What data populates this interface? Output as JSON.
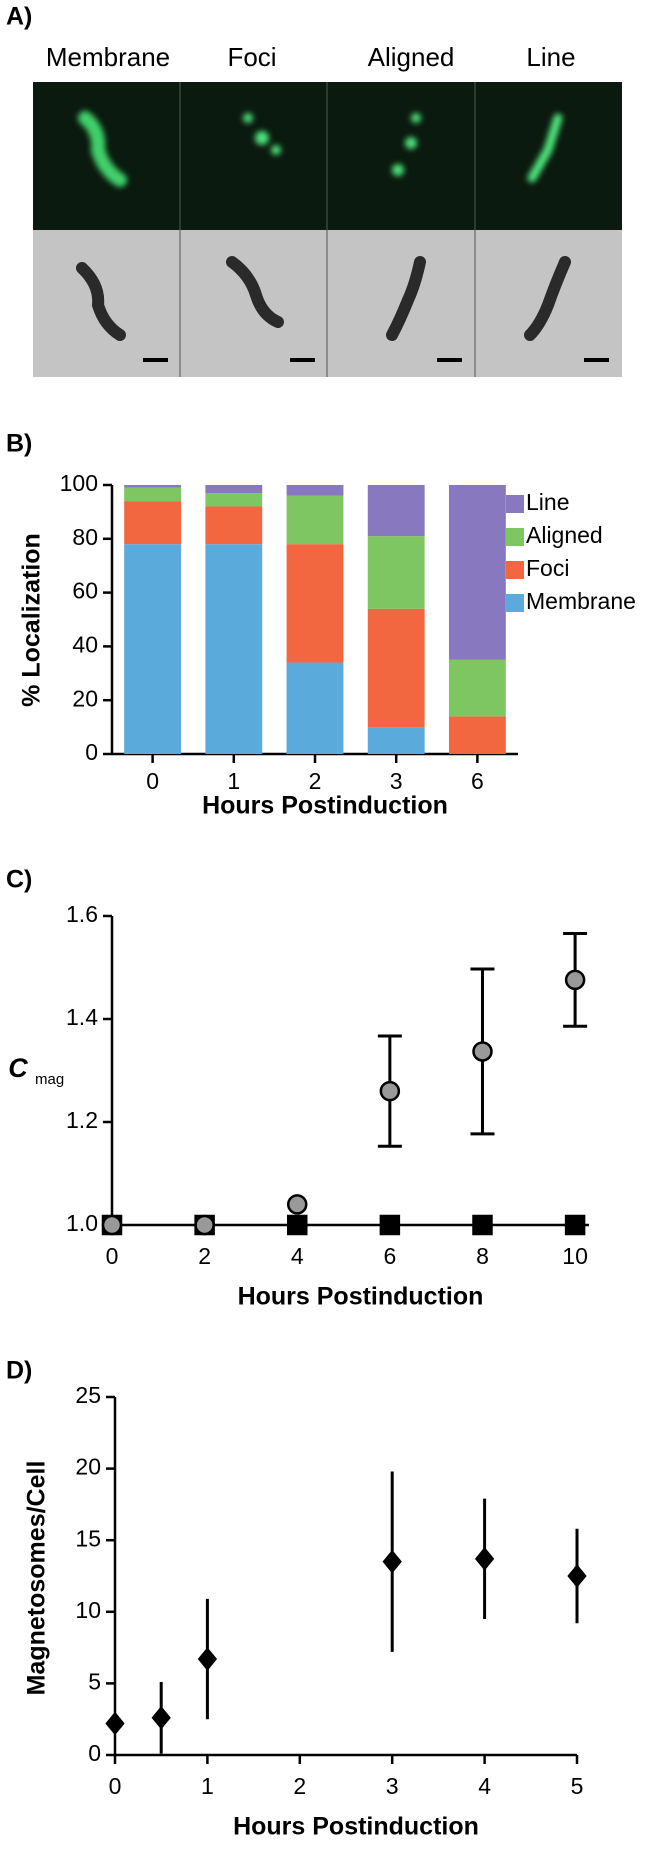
{
  "panel_a": {
    "label": "A)",
    "columns": [
      "Membrane",
      "Foci",
      "Aligned",
      "Line"
    ]
  },
  "chart_data": [
    {
      "type": "bar",
      "stacked": true,
      "panel_label": "B)",
      "ylabel": "% Localization",
      "xlabel": "Hours Postinduction",
      "categories": [
        "0",
        "1",
        "2",
        "3",
        "6"
      ],
      "series": [
        {
          "name": "Membrane",
          "color": "#5aaadc",
          "values": [
            78,
            78,
            34,
            10,
            0
          ]
        },
        {
          "name": "Foci",
          "color": "#f26640",
          "values": [
            16,
            14,
            44,
            44,
            14
          ]
        },
        {
          "name": "Aligned",
          "color": "#7dc661",
          "values": [
            5,
            5,
            18,
            27,
            21
          ]
        },
        {
          "name": "Line",
          "color": "#8878c0",
          "values": [
            1,
            3,
            4,
            19,
            65
          ]
        }
      ],
      "ylim": [
        0,
        100
      ],
      "yticks": [
        0,
        20,
        40,
        60,
        80,
        100
      ],
      "legend": "right"
    },
    {
      "type": "scatter",
      "panel_label": "C)",
      "ylabel": "C",
      "ylabel_sub": "mag",
      "xlabel": "Hours Postinduction",
      "xlim": [
        0,
        10.3
      ],
      "xticks": [
        0,
        2,
        4,
        6,
        8,
        10
      ],
      "ylim": [
        1,
        1.6
      ],
      "yticks": [
        {
          "value": 1,
          "label": "1.0"
        },
        1.2,
        1.4,
        1.6
      ],
      "error_caps": true,
      "series": [
        {
          "marker": "square",
          "color": "#000000",
          "x": [
            0,
            2,
            4,
            6,
            8,
            10
          ],
          "values": [
            1,
            1,
            1,
            1,
            1,
            1
          ]
        },
        {
          "marker": "circle",
          "color": "#999999",
          "x": [
            0,
            2,
            4,
            6,
            8,
            10
          ],
          "values": [
            1,
            1,
            1.04,
            1.26,
            1.337,
            1.476
          ],
          "errors": [
            0,
            0,
            0,
            0.107,
            0.16,
            0.09
          ]
        }
      ]
    },
    {
      "type": "scatter",
      "panel_label": "D)",
      "ylabel": "Magnetosomes/Cell",
      "xlabel": "Hours Postinduction",
      "xlim": [
        0,
        5
      ],
      "xticks": [
        0,
        1,
        2,
        3,
        4,
        5
      ],
      "ylim": [
        0,
        25
      ],
      "yticks": [
        0,
        5,
        10,
        15,
        20,
        25
      ],
      "error_caps": false,
      "series": [
        {
          "marker": "diamond",
          "color": "#000000",
          "x": [
            0,
            0.5,
            1,
            3,
            4,
            5
          ],
          "values": [
            2.2,
            2.6,
            6.7,
            13.5,
            13.7,
            12.5
          ],
          "errors": [
            0,
            2.5,
            4.2,
            6.3,
            4.2,
            3.3
          ]
        }
      ]
    }
  ]
}
